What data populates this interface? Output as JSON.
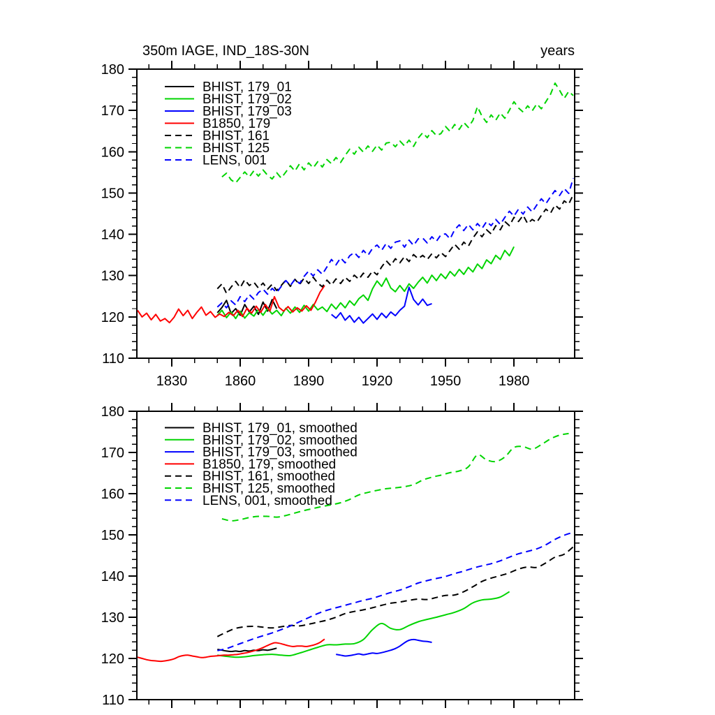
{
  "figure": {
    "background": "#ffffff",
    "axis_color": "#000000"
  },
  "chart_data": [
    {
      "type": "line",
      "title": "350m IAGE, IND_18S-30N",
      "units_label": "years",
      "xlim": [
        1814.7,
        2006.6
      ],
      "ylim": [
        110,
        180
      ],
      "xtick_major": [
        1830,
        1860,
        1890,
        1920,
        1950,
        1980
      ],
      "xtick_labels": [
        "1830",
        "1860",
        "1890",
        "1920",
        "1950",
        "1980"
      ],
      "xtick_minor_step": 10,
      "ytick_major_step": 10,
      "ytick_labels": [
        "110",
        "120",
        "130",
        "140",
        "150",
        "160",
        "170",
        "180"
      ],
      "ytick_minor_step": 2,
      "x_labels_visible": true,
      "grid": false,
      "legend_position": "upper-left-inside",
      "series": [
        {
          "name": "BHIST, 179_01",
          "color": "#000000",
          "style": "solid",
          "smoothed": false,
          "start": 1850,
          "step": 2,
          "values": [
            121.0,
            122.3,
            124.0,
            120.8,
            122.0,
            120.4,
            123.0,
            121.2,
            122.6,
            120.6,
            123.6,
            121.4,
            124.2,
            122.0
          ]
        },
        {
          "name": "BHIST, 179_02",
          "color": "#00d400",
          "style": "solid",
          "smoothed": false,
          "start": 1850,
          "step": 2,
          "values": [
            120.4,
            121.6,
            119.8,
            121.2,
            119.6,
            121.4,
            119.7,
            121.0,
            120.2,
            121.8,
            120.4,
            122.0,
            120.7,
            121.6,
            120.3,
            122.1,
            120.9,
            122.4,
            121.1,
            122.8,
            121.4,
            123.0,
            121.7,
            122.4,
            121.3,
            123.1,
            121.9,
            123.4,
            122.2,
            123.9,
            122.8,
            124.4,
            125.3,
            124.0,
            126.8,
            128.7,
            127.4,
            129.4,
            127.0,
            126.1,
            127.6,
            126.2,
            128.0,
            126.9,
            128.4,
            129.6,
            128.2,
            130.1,
            128.8,
            130.4,
            129.3,
            131.0,
            129.9,
            131.5,
            130.3,
            132.0,
            130.9,
            132.8,
            131.7,
            133.8,
            132.9,
            134.9,
            133.9,
            136.1,
            134.8,
            137.0
          ]
        },
        {
          "name": "BHIST, 179_03",
          "color": "#0000ff",
          "style": "solid",
          "smoothed": false,
          "start": 1900,
          "step": 2,
          "values": [
            120.6,
            119.7,
            121.0,
            119.2,
            120.3,
            118.7,
            119.9,
            118.5,
            119.6,
            120.7,
            119.4,
            120.9,
            119.8,
            121.2,
            120.3,
            121.6,
            122.6,
            127.2,
            124.2,
            122.9,
            124.3,
            122.8,
            123.2
          ]
        },
        {
          "name": "B1850, 179",
          "color": "#ff0000",
          "style": "solid",
          "smoothed": false,
          "start": 1815,
          "step": 2,
          "values": [
            121.6,
            120.0,
            120.9,
            119.3,
            120.6,
            119.0,
            119.6,
            118.6,
            119.9,
            121.9,
            120.3,
            121.6,
            119.6,
            121.1,
            122.4,
            120.4,
            121.3,
            119.9,
            120.7,
            120.1,
            121.1,
            120.3,
            121.6,
            120.1,
            122.1,
            120.9,
            122.6,
            121.1,
            123.0,
            121.4,
            124.9,
            122.3,
            121.4,
            122.5,
            121.2,
            122.2,
            121.4,
            122.7,
            121.6,
            123.6,
            126.0,
            127.6
          ]
        },
        {
          "name": "BHIST, 161",
          "color": "#000000",
          "style": "dashed",
          "smoothed": false,
          "start": 1850,
          "step": 2,
          "values": [
            126.8,
            128.0,
            125.7,
            127.2,
            128.6,
            127.1,
            129.0,
            127.6,
            128.4,
            127.0,
            128.2,
            126.7,
            127.9,
            126.4,
            127.6,
            128.9,
            127.4,
            129.1,
            127.8,
            129.4,
            128.1,
            129.6,
            128.2,
            127.3,
            128.9,
            127.7,
            129.2,
            128.1,
            129.6,
            128.6,
            130.1,
            129.1,
            130.6,
            129.6,
            131.1,
            130.2,
            132.1,
            133.6,
            132.4,
            134.1,
            133.1,
            134.6,
            133.4,
            135.1,
            134.1,
            134.9,
            133.9,
            135.3,
            134.3,
            135.6,
            134.6,
            136.1,
            137.6,
            136.4,
            138.1,
            137.1,
            139.1,
            140.6,
            139.4,
            141.1,
            140.1,
            142.1,
            141.1,
            143.1,
            142.1,
            144.1,
            143.1,
            144.6,
            142.6,
            143.6,
            142.9,
            144.6,
            146.1,
            145.1,
            147.1,
            146.1,
            148.1,
            147.3,
            149.6
          ]
        },
        {
          "name": "BHIST, 125",
          "color": "#00d400",
          "style": "dashed",
          "smoothed": false,
          "start": 1852,
          "step": 2,
          "values": [
            153.9,
            154.8,
            153.2,
            152.4,
            153.8,
            155.1,
            153.9,
            155.4,
            154.1,
            155.6,
            154.3,
            153.4,
            154.9,
            153.6,
            155.1,
            156.6,
            155.3,
            157.1,
            155.6,
            157.3,
            156.1,
            157.6,
            156.3,
            158.1,
            157.1,
            158.6,
            157.4,
            159.1,
            160.6,
            159.4,
            161.1,
            159.9,
            161.4,
            160.1,
            161.6,
            160.4,
            162.1,
            162.3,
            161.2,
            162.6,
            161.4,
            162.8,
            161.3,
            163.3,
            164.6,
            163.4,
            165.1,
            163.9,
            164.4,
            166.1,
            164.9,
            166.6,
            165.4,
            167.1,
            165.9,
            167.6,
            170.9,
            168.6,
            167.1,
            168.9,
            167.6,
            169.4,
            168.1,
            170.1,
            172.1,
            170.6,
            169.6,
            171.1,
            169.9,
            171.6,
            170.4,
            172.1,
            173.9,
            176.6,
            174.9,
            172.9,
            174.6,
            173.6
          ]
        },
        {
          "name": "LENS, 001",
          "color": "#0000ff",
          "style": "dashed",
          "smoothed": false,
          "start": 1850,
          "step": 2,
          "values": [
            122.4,
            123.4,
            122.2,
            123.9,
            122.9,
            124.9,
            123.7,
            125.4,
            124.3,
            125.9,
            126.7,
            125.5,
            126.9,
            125.9,
            127.4,
            128.8,
            127.6,
            129.1,
            128.1,
            129.8,
            131.1,
            129.9,
            131.4,
            130.3,
            132.1,
            133.9,
            132.6,
            134.3,
            133.1,
            134.8,
            135.6,
            134.4,
            136.1,
            134.9,
            136.6,
            137.4,
            136.1,
            137.8,
            136.6,
            138.1,
            138.4,
            136.9,
            138.6,
            137.3,
            138.9,
            139.1,
            137.9,
            139.4,
            138.3,
            139.9,
            140.1,
            138.9,
            141.1,
            142.3,
            140.9,
            142.4,
            141.1,
            142.6,
            141.4,
            143.1,
            142.1,
            143.6,
            142.4,
            144.1,
            145.6,
            144.4,
            146.1,
            144.9,
            146.6,
            145.4,
            147.1,
            148.6,
            147.4,
            149.1,
            150.6,
            149.4,
            151.1,
            149.9,
            153.6
          ]
        }
      ]
    },
    {
      "type": "line",
      "title": "",
      "units_label": "",
      "xlim": [
        1814.7,
        2006.6
      ],
      "ylim": [
        110,
        180
      ],
      "xtick_major": [
        1830,
        1860,
        1890,
        1920,
        1950,
        1980
      ],
      "xtick_labels": [],
      "xtick_minor_step": 10,
      "ytick_major_step": 10,
      "ytick_labels": [
        "110",
        "120",
        "130",
        "140",
        "150",
        "160",
        "170",
        "180"
      ],
      "ytick_minor_step": 2,
      "x_labels_visible": false,
      "grid": false,
      "legend_position": "upper-left-inside",
      "series": [
        {
          "name": "BHIST, 179_01, smoothed",
          "color": "#000000",
          "style": "solid",
          "smoothed": true,
          "start": 1850,
          "step": 2,
          "values": [
            122.2,
            122.0,
            121.8,
            121.7,
            121.8,
            121.7,
            121.9,
            121.8,
            122.0,
            121.9,
            122.1,
            122.0,
            122.2,
            122.5
          ]
        },
        {
          "name": "BHIST, 179_02, smoothed",
          "color": "#00d400",
          "style": "solid",
          "smoothed": true,
          "start": 1850,
          "step": 4,
          "values": [
            120.8,
            120.5,
            120.3,
            120.4,
            120.7,
            120.9,
            121.0,
            120.8,
            120.7,
            121.3,
            122.0,
            122.7,
            123.3,
            123.3,
            123.5,
            123.6,
            124.6,
            127.0,
            128.5,
            127.3,
            127.0,
            128.0,
            128.9,
            129.5,
            130.0,
            130.6,
            131.2,
            132.1,
            133.5,
            134.2,
            134.4,
            134.9,
            136.2
          ]
        },
        {
          "name": "BHIST, 179_03, smoothed",
          "color": "#0000ff",
          "style": "solid",
          "smoothed": true,
          "start": 1902,
          "step": 2,
          "values": [
            121.0,
            120.8,
            120.6,
            120.7,
            120.9,
            121.1,
            120.9,
            121.1,
            121.3,
            121.2,
            121.4,
            121.7,
            122.0,
            122.4,
            123.0,
            123.8,
            124.4,
            124.6,
            124.4,
            124.2,
            124.1,
            123.9
          ]
        },
        {
          "name": "B1850, 179, smoothed",
          "color": "#ff0000",
          "style": "solid",
          "smoothed": true,
          "start": 1815,
          "step": 2,
          "values": [
            120.3,
            120.0,
            119.7,
            119.5,
            119.4,
            119.3,
            119.4,
            119.6,
            119.9,
            120.4,
            120.7,
            120.8,
            120.6,
            120.4,
            120.2,
            120.3,
            120.5,
            120.6,
            120.7,
            120.8,
            120.8,
            120.9,
            121.0,
            121.2,
            121.4,
            121.7,
            122.0,
            122.4,
            122.9,
            123.4,
            123.8,
            123.7,
            123.4,
            123.1,
            122.9,
            123.0,
            123.0,
            122.9,
            123.1,
            123.4,
            123.9,
            124.7
          ]
        },
        {
          "name": "BHIST, 161, smoothed",
          "color": "#000000",
          "style": "dashed",
          "smoothed": true,
          "start": 1850,
          "step": 4,
          "values": [
            125.3,
            126.4,
            127.3,
            127.7,
            127.8,
            127.6,
            127.4,
            127.7,
            128.0,
            127.9,
            128.3,
            128.8,
            129.3,
            130.0,
            130.9,
            131.4,
            131.8,
            132.3,
            132.9,
            133.4,
            133.7,
            134.1,
            134.4,
            134.3,
            134.8,
            135.3,
            135.4,
            136.2,
            137.4,
            138.7,
            139.5,
            140.1,
            140.8,
            141.7,
            142.2,
            142.1,
            143.2,
            144.6,
            145.3,
            147.1
          ]
        },
        {
          "name": "BHIST, 125, smoothed",
          "color": "#00d400",
          "style": "dashed",
          "smoothed": true,
          "start": 1852,
          "step": 4,
          "values": [
            153.9,
            153.4,
            153.7,
            154.2,
            154.5,
            154.5,
            154.3,
            154.7,
            155.3,
            155.9,
            156.4,
            156.9,
            157.3,
            157.8,
            158.6,
            159.7,
            160.3,
            160.8,
            161.2,
            161.4,
            161.7,
            162.2,
            163.3,
            164.0,
            164.5,
            165.1,
            165.5,
            166.5,
            169.4,
            168.2,
            167.8,
            168.9,
            171.2,
            171.4,
            170.8,
            171.9,
            173.3,
            174.2,
            174.6
          ]
        },
        {
          "name": "LENS, 001, smoothed",
          "color": "#0000ff",
          "style": "dashed",
          "smoothed": true,
          "start": 1850,
          "step": 4,
          "values": [
            121.9,
            122.4,
            123.2,
            124.0,
            124.8,
            125.5,
            126.2,
            127.0,
            127.9,
            128.9,
            129.9,
            130.9,
            131.7,
            132.3,
            132.9,
            133.5,
            134.1,
            134.6,
            135.3,
            136.0,
            136.6,
            137.4,
            138.3,
            138.9,
            139.4,
            139.9,
            140.6,
            141.2,
            141.9,
            142.5,
            143.0,
            143.7,
            144.6,
            145.4,
            146.0,
            146.6,
            147.6,
            148.9,
            149.9,
            150.6
          ]
        }
      ]
    }
  ]
}
